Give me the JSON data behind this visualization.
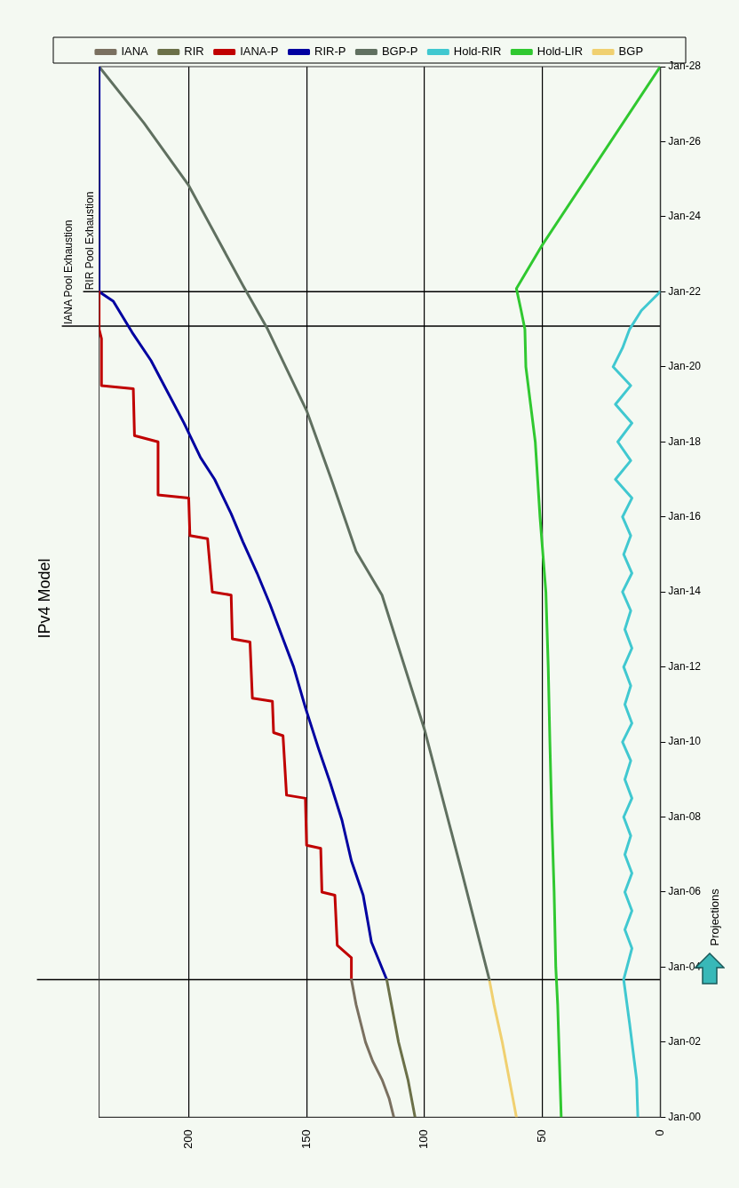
{
  "chart_data": {
    "type": "line",
    "title": "IPv4 Model",
    "orientation": "horizontal",
    "xlim": [
      238,
      0
    ],
    "xticks": [
      200,
      150,
      100,
      50,
      0
    ],
    "ylim": [
      "2000-01",
      "2028-01"
    ],
    "yticks": [
      {
        "value": "2000-01",
        "label": "Jan-00"
      },
      {
        "value": "2002-01",
        "label": "Jan-02"
      },
      {
        "value": "2004-01",
        "label": "Jan-04"
      },
      {
        "value": "2006-01",
        "label": "Jan-06"
      },
      {
        "value": "2008-01",
        "label": "Jan-08"
      },
      {
        "value": "2010-01",
        "label": "Jan-10"
      },
      {
        "value": "2012-01",
        "label": "Jan-12"
      },
      {
        "value": "2014-01",
        "label": "Jan-14"
      },
      {
        "value": "2016-01",
        "label": "Jan-16"
      },
      {
        "value": "2018-01",
        "label": "Jan-18"
      },
      {
        "value": "2020-01",
        "label": "Jan-20"
      },
      {
        "value": "2022-01",
        "label": "Jan-22"
      },
      {
        "value": "2024-01",
        "label": "Jan-24"
      },
      {
        "value": "2026-01",
        "label": "Jan-26"
      },
      {
        "value": "2028-01",
        "label": "Jan-28"
      }
    ],
    "grid": "x",
    "legend": "top",
    "marker": "none",
    "line_style": "solid",
    "series": [
      {
        "name": "IANA",
        "color": "#7a7060",
        "values": [
          113,
          115,
          118,
          122,
          125,
          127,
          129,
          131
        ],
        "x": [
          "2000-01",
          "2000-07",
          "2001-01",
          "2001-07",
          "2002-01",
          "2002-07",
          "2003-01",
          "2003-09"
        ]
      },
      {
        "name": "RIR",
        "color": "#6b7048",
        "values": [
          104,
          107,
          111,
          114,
          116
        ],
        "x": [
          "2000-01",
          "2001-01",
          "2002-01",
          "2003-01",
          "2003-09"
        ]
      },
      {
        "name": "IANA-P",
        "color": "#c00000",
        "values": [
          131,
          131,
          137,
          138,
          143.5,
          144,
          150,
          150.5,
          158.5,
          160,
          164,
          164.5,
          173,
          174,
          181.5,
          182,
          190,
          192,
          199.5,
          200,
          213,
          213,
          223,
          223.5,
          237,
          237,
          238,
          238
        ],
        "x": [
          "2003-09",
          "2004-04",
          "2004-08",
          "2005-12",
          "2006-01",
          "2007-03",
          "2007-04",
          "2008-07",
          "2008-08",
          "2010-03",
          "2010-04",
          "2011-02",
          "2011-03",
          "2012-09",
          "2012-10",
          "2013-12",
          "2014-01",
          "2015-06",
          "2015-07",
          "2016-07",
          "2016-08",
          "2018-01",
          "2018-03",
          "2019-06",
          "2019-07",
          "2020-10",
          "2021-01",
          "2022-01"
        ]
      },
      {
        "name": "RIR-P",
        "color": "#0000a0",
        "values": [
          116,
          122.5,
          126,
          131,
          135,
          140,
          145,
          150.5,
          155.5,
          160.5,
          165.5,
          171,
          177,
          182,
          189,
          195,
          202,
          209,
          216,
          224,
          232,
          238,
          238
        ],
        "x": [
          "2003-09",
          "2004-09",
          "2005-12",
          "2006-11",
          "2007-12",
          "2008-12",
          "2009-11",
          "2010-12",
          "2012-01",
          "2012-11",
          "2013-09",
          "2014-07",
          "2015-05",
          "2016-02",
          "2017-01",
          "2017-08",
          "2018-07",
          "2019-05",
          "2020-03",
          "2020-12",
          "2021-10",
          "2022-01",
          "2028-01"
        ]
      },
      {
        "name": "BGP-P",
        "color": "#607060",
        "values": [
          72.5,
          84,
          100,
          118,
          129,
          139.5,
          150,
          166.5,
          177,
          200,
          219,
          238
        ],
        "x": [
          "2003-09",
          "2006-07",
          "2010-05",
          "2013-12",
          "2015-02",
          "2017-01",
          "2018-11",
          "2021-01",
          "2022-03",
          "2024-11",
          "2026-07",
          "2028-01"
        ]
      },
      {
        "name": "Hold-RIR",
        "color": "#40c8d0",
        "values": [
          9.5,
          10,
          11,
          13,
          15.5,
          12,
          15,
          12,
          15,
          12,
          15,
          12.5,
          15.5,
          12,
          15,
          12.5,
          16,
          12,
          15,
          12.5,
          15.5,
          12,
          15,
          12.5,
          16,
          12,
          15.5,
          12.5,
          16,
          12,
          19,
          12.5,
          18,
          12,
          19,
          12.5,
          20,
          16,
          13,
          8,
          0
        ],
        "x": [
          "2000-01",
          "2001-01",
          "2001-07",
          "2002-07",
          "2003-09",
          "2004-07",
          "2005-01",
          "2005-07",
          "2006-01",
          "2006-07",
          "2007-01",
          "2007-07",
          "2008-01",
          "2008-07",
          "2009-01",
          "2009-07",
          "2010-01",
          "2010-07",
          "2011-01",
          "2011-07",
          "2012-01",
          "2012-07",
          "2013-01",
          "2013-07",
          "2014-01",
          "2014-07",
          "2015-01",
          "2015-07",
          "2016-01",
          "2016-07",
          "2017-01",
          "2017-07",
          "2018-01",
          "2018-07",
          "2019-01",
          "2019-07",
          "2020-01",
          "2020-07",
          "2021-01",
          "2021-07",
          "2022-01"
        ]
      },
      {
        "name": "Hold-LIR",
        "color": "#30c830",
        "values": [
          42,
          42.5,
          43,
          43.5,
          44.3,
          45,
          46,
          46.8,
          47.5,
          48.5,
          51,
          53,
          55,
          57,
          57.4,
          59,
          61,
          50,
          0
        ],
        "x": [
          "2000-01",
          "2001-01",
          "2002-01",
          "2003-01",
          "2004-01",
          "2006-01",
          "2008-01",
          "2010-01",
          "2012-01",
          "2014-01",
          "2016-01",
          "2018-01",
          "2019-01",
          "2020-01",
          "2021-01",
          "2021-07",
          "2022-02",
          "2023-04",
          "2028-01"
        ]
      },
      {
        "name": "BGP",
        "color": "#f0d070",
        "values": [
          61,
          64,
          67,
          70.5,
          72.5
        ],
        "x": [
          "2000-01",
          "2001-01",
          "2002-01",
          "2003-01",
          "2003-09"
        ]
      }
    ],
    "ref_lines": [
      {
        "axis": "y",
        "value": "2003-09",
        "color": "#000000"
      },
      {
        "axis": "y",
        "value": "2021-02",
        "label": "IANA Pool Exhaustion",
        "color": "#000000"
      },
      {
        "axis": "y",
        "value": "2022-01",
        "label": "RIR Pool Exhaustion",
        "color": "#000000"
      }
    ],
    "annotations": [
      "Projections"
    ]
  }
}
